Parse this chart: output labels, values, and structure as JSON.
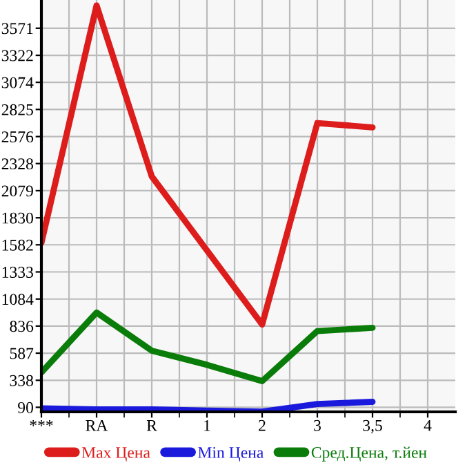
{
  "chart_data": {
    "type": "line",
    "categories": [
      "***",
      "RA",
      "R",
      "1",
      "2",
      "3",
      "3,5",
      "4"
    ],
    "series": [
      {
        "name": "Max Цена",
        "color": "#dd1c1c",
        "values": [
          1600,
          3780,
          2210,
          1530,
          850,
          2700,
          2660,
          null
        ]
      },
      {
        "name": "Min Цена",
        "color": "#1a1adc",
        "values": [
          80,
          70,
          70,
          60,
          50,
          120,
          140,
          null
        ]
      },
      {
        "name": "Сред.Цена, т.йен",
        "color": "#0a7c0a",
        "values": [
          410,
          960,
          610,
          480,
          330,
          790,
          820,
          null
        ]
      }
    ],
    "ylim": [
      48,
      3830
    ],
    "yticks": [
      90,
      338,
      587,
      836,
      1084,
      1333,
      1582,
      1830,
      2079,
      2328,
      2576,
      2825,
      3074,
      3322,
      3571
    ],
    "grid": true,
    "legend": "bottom",
    "marker": "none",
    "line_style": "solid"
  }
}
